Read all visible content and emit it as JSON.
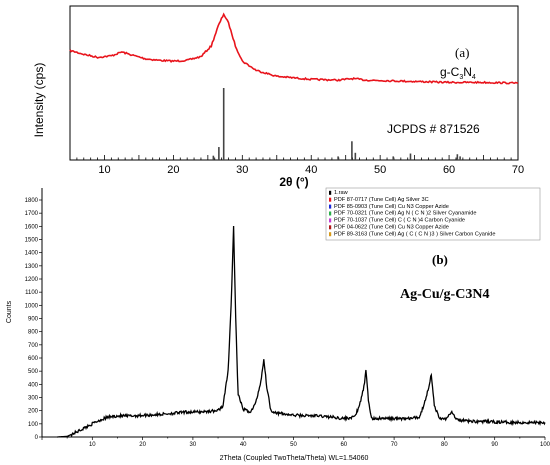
{
  "chart_data": [
    {
      "panel": "(a)",
      "type": "line",
      "xlabel": "2θ (°)",
      "ylabel": "Intensity (cps)",
      "xlim": [
        5,
        70
      ],
      "xticks": [
        10,
        20,
        30,
        40,
        50,
        60,
        70
      ],
      "sample_label": "g-C3N4",
      "reference_label": "JCPDS # 871526",
      "series": [
        {
          "name": "g-C3N4",
          "color": "#e8141c",
          "points": [
            [
              5,
              0.52
            ],
            [
              7,
              0.47
            ],
            [
              9,
              0.43
            ],
            [
              11,
              0.45
            ],
            [
              12.5,
              0.5
            ],
            [
              14,
              0.46
            ],
            [
              16,
              0.41
            ],
            [
              18,
              0.39
            ],
            [
              20,
              0.38
            ],
            [
              22,
              0.39
            ],
            [
              24,
              0.44
            ],
            [
              25.5,
              0.58
            ],
            [
              26.5,
              0.84
            ],
            [
              27.3,
              1.0
            ],
            [
              28,
              0.88
            ],
            [
              29,
              0.58
            ],
            [
              30,
              0.38
            ],
            [
              32,
              0.26
            ],
            [
              35,
              0.18
            ],
            [
              40,
              0.14
            ],
            [
              44,
              0.13
            ],
            [
              46,
              0.15
            ],
            [
              48,
              0.13
            ],
            [
              52,
              0.12
            ],
            [
              56,
              0.11
            ],
            [
              60,
              0.1
            ],
            [
              65,
              0.1
            ],
            [
              70,
              0.09
            ]
          ]
        }
      ],
      "reference_sticks": [
        [
          25.8,
          0.06
        ],
        [
          26.6,
          0.18
        ],
        [
          27.3,
          1.0
        ],
        [
          43.9,
          0.05
        ],
        [
          45.9,
          0.26
        ],
        [
          46.4,
          0.1
        ],
        [
          51.9,
          0.05
        ],
        [
          54.4,
          0.09
        ],
        [
          61.2,
          0.08
        ],
        [
          61.6,
          0.05
        ]
      ]
    },
    {
      "panel": "(b)",
      "type": "line",
      "title": "Ag-Cu/g-C3N4",
      "xlabel": "2Theta (Coupled TwoTheta/Theta) WL=1.54060",
      "ylabel": "Counts",
      "xlim": [
        0,
        100
      ],
      "ylim": [
        0,
        1800
      ],
      "xticks": [
        10,
        20,
        30,
        40,
        50,
        60,
        70,
        80,
        90,
        100
      ],
      "yticks": [
        0,
        100,
        200,
        300,
        400,
        500,
        600,
        700,
        800,
        900,
        1000,
        1100,
        1200,
        1300,
        1400,
        1500,
        1600,
        1700,
        1800
      ],
      "legend": [
        {
          "text": "1.raw",
          "color": "#000000"
        },
        {
          "text": "PDF 87-0717 (Tune Cell) Ag Silver 3C",
          "color": "#e8141c"
        },
        {
          "text": "PDF 85-0903 (Tune Cell) Cu N3 Copper Azide",
          "color": "#1a28d8"
        },
        {
          "text": "PDF 70-0321 (Tune Cell) Ag N ( C N )2 Silver Cyanamide",
          "color": "#2ab04a"
        },
        {
          "text": "PDF 70-1037 (Tune Cell) C ( C N )4 Carbon Cyanide",
          "color": "#c33bd6"
        },
        {
          "text": "PDF 04-0622 (Tune Cell) Cu N3 Copper Azide",
          "color": "#b01818"
        },
        {
          "text": "PDF 89-3163 (Tune Cell) Ag ( C ( C N )3 ) Silver Carbon Cyanide",
          "color": "#d89a18"
        }
      ],
      "series": [
        {
          "name": "1.raw",
          "color": "#000000",
          "points": [
            [
              3,
              0
            ],
            [
              5,
              5
            ],
            [
              7,
              40
            ],
            [
              9,
              80
            ],
            [
              11,
              120
            ],
            [
              13,
              150
            ],
            [
              15,
              160
            ],
            [
              18,
              160
            ],
            [
              20,
              165
            ],
            [
              23,
              170
            ],
            [
              26,
              180
            ],
            [
              29,
              190
            ],
            [
              31,
              190
            ],
            [
              33,
              195
            ],
            [
              35,
              200
            ],
            [
              36,
              240
            ],
            [
              37,
              500
            ],
            [
              37.6,
              1000
            ],
            [
              38.1,
              1600
            ],
            [
              38.5,
              900
            ],
            [
              39,
              320
            ],
            [
              40,
              210
            ],
            [
              41.5,
              190
            ],
            [
              42.5,
              260
            ],
            [
              43.5,
              420
            ],
            [
              44.1,
              590
            ],
            [
              44.7,
              380
            ],
            [
              45.5,
              200
            ],
            [
              47,
              180
            ],
            [
              50,
              165
            ],
            [
              55,
              160
            ],
            [
              58,
              150
            ],
            [
              60,
              140
            ],
            [
              62,
              150
            ],
            [
              63,
              220
            ],
            [
              64,
              380
            ],
            [
              64.4,
              500
            ],
            [
              64.9,
              280
            ],
            [
              65.5,
              140
            ],
            [
              67,
              140
            ],
            [
              70,
              140
            ],
            [
              73,
              140
            ],
            [
              75,
              150
            ],
            [
              76,
              250
            ],
            [
              77,
              400
            ],
            [
              77.4,
              480
            ],
            [
              78,
              240
            ],
            [
              79,
              140
            ],
            [
              80.5,
              140
            ],
            [
              81.2,
              180
            ],
            [
              81.6,
              190
            ],
            [
              82.3,
              130
            ],
            [
              85,
              120
            ],
            [
              90,
              115
            ],
            [
              95,
              110
            ],
            [
              100,
              110
            ]
          ]
        }
      ]
    }
  ]
}
